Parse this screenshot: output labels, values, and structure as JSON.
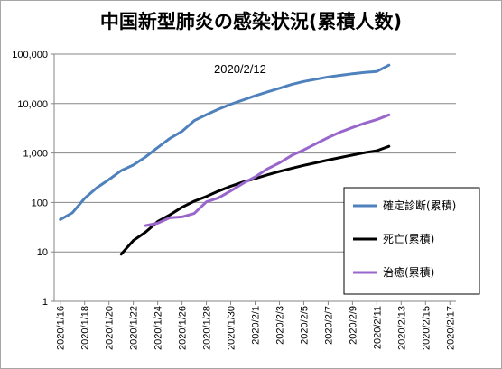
{
  "chart_data": {
    "type": "line",
    "title": "中国新型肺炎の感染状況(累積人数)",
    "annotation": "2020/2/12",
    "y_scale": "log",
    "ylim": [
      1,
      100000
    ],
    "y_ticks": [
      "1",
      "10",
      "100",
      "1,000",
      "10,000",
      "100,000"
    ],
    "x_ticks": [
      "2020/1/16",
      "2020/1/18",
      "2020/1/20",
      "2020/1/22",
      "2020/1/24",
      "2020/1/26",
      "2020/1/28",
      "2020/1/30",
      "2020/2/1",
      "2020/2/3",
      "2020/2/5",
      "2020/2/7",
      "2020/2/9",
      "2020/2/11",
      "2020/2/13",
      "2020/2/15",
      "2020/2/17"
    ],
    "x": [
      "2020/1/16",
      "2020/1/17",
      "2020/1/18",
      "2020/1/19",
      "2020/1/20",
      "2020/1/21",
      "2020/1/22",
      "2020/1/23",
      "2020/1/24",
      "2020/1/25",
      "2020/1/26",
      "2020/1/27",
      "2020/1/28",
      "2020/1/29",
      "2020/1/30",
      "2020/1/31",
      "2020/2/1",
      "2020/2/2",
      "2020/2/3",
      "2020/2/4",
      "2020/2/5",
      "2020/2/6",
      "2020/2/7",
      "2020/2/8",
      "2020/2/9",
      "2020/2/10",
      "2020/2/11",
      "2020/2/12"
    ],
    "gridlines": "horizontal",
    "legend_position": "right",
    "series": [
      {
        "name": "確定診断(累積)",
        "color": "#4f81bd",
        "values": [
          45,
          62,
          121,
          198,
          291,
          440,
          571,
          830,
          1287,
          1975,
          2744,
          4515,
          5974,
          7711,
          9692,
          11791,
          14380,
          17205,
          20438,
          24324,
          28018,
          31161,
          34546,
          37198,
          40171,
          42638,
          44653,
          59804
        ]
      },
      {
        "name": "死亡(累積)",
        "color": "#000000",
        "values": [
          null,
          null,
          null,
          null,
          null,
          9,
          17,
          25,
          41,
          56,
          80,
          106,
          132,
          170,
          213,
          259,
          304,
          361,
          425,
          490,
          563,
          636,
          722,
          811,
          908,
          1016,
          1113,
          1367
        ]
      },
      {
        "name": "治癒(累積)",
        "color": "#9966cc",
        "values": [
          null,
          null,
          null,
          null,
          null,
          null,
          null,
          34,
          38,
          49,
          51,
          60,
          103,
          124,
          171,
          243,
          328,
          475,
          632,
          892,
          1153,
          1540,
          2050,
          2649,
          3281,
          3996,
          4740,
          5911
        ]
      }
    ]
  }
}
